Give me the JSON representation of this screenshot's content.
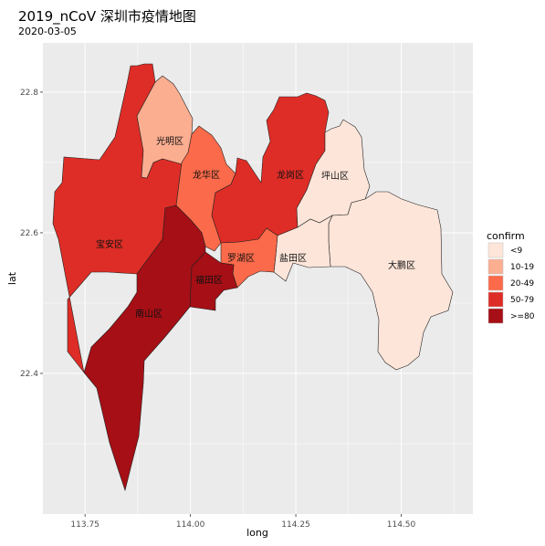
{
  "title": "2019_nCoV 深圳市疫情地图",
  "subtitle": "2020-03-05",
  "chart_data": {
    "type": "choropleth",
    "xlabel": "long",
    "ylabel": "lat",
    "xlim": [
      113.65,
      114.67
    ],
    "ylim": [
      22.2,
      22.87
    ],
    "x_ticks": [
      "113.75",
      "114.00",
      "114.25",
      "114.50"
    ],
    "y_ticks": [
      "22.4",
      "22.6",
      "22.8"
    ],
    "legend": {
      "title": "confirm",
      "position": "right",
      "entries": [
        {
          "label": "<9",
          "color": "#fee5d9"
        },
        {
          "label": "10-19",
          "color": "#fcae91"
        },
        {
          "label": "20-49",
          "color": "#fb6a4a"
        },
        {
          "label": "50-79",
          "color": "#de2d26"
        },
        {
          "label": ">=80",
          "color": "#a50f15"
        }
      ]
    },
    "regions": [
      {
        "name": "宝安区",
        "confirm_class": "50-79"
      },
      {
        "name": "光明区",
        "confirm_class": "10-19"
      },
      {
        "name": "龙华区",
        "confirm_class": "20-49"
      },
      {
        "name": "龙岗区",
        "confirm_class": "50-79"
      },
      {
        "name": "坪山区",
        "confirm_class": "<9"
      },
      {
        "name": "大鹏区",
        "confirm_class": "<9"
      },
      {
        "name": "盐田区",
        "confirm_class": "<9"
      },
      {
        "name": "罗湖区",
        "confirm_class": "20-49"
      },
      {
        "name": "福田区",
        "confirm_class": ">=80"
      },
      {
        "name": "南山区",
        "confirm_class": ">=80"
      }
    ]
  }
}
